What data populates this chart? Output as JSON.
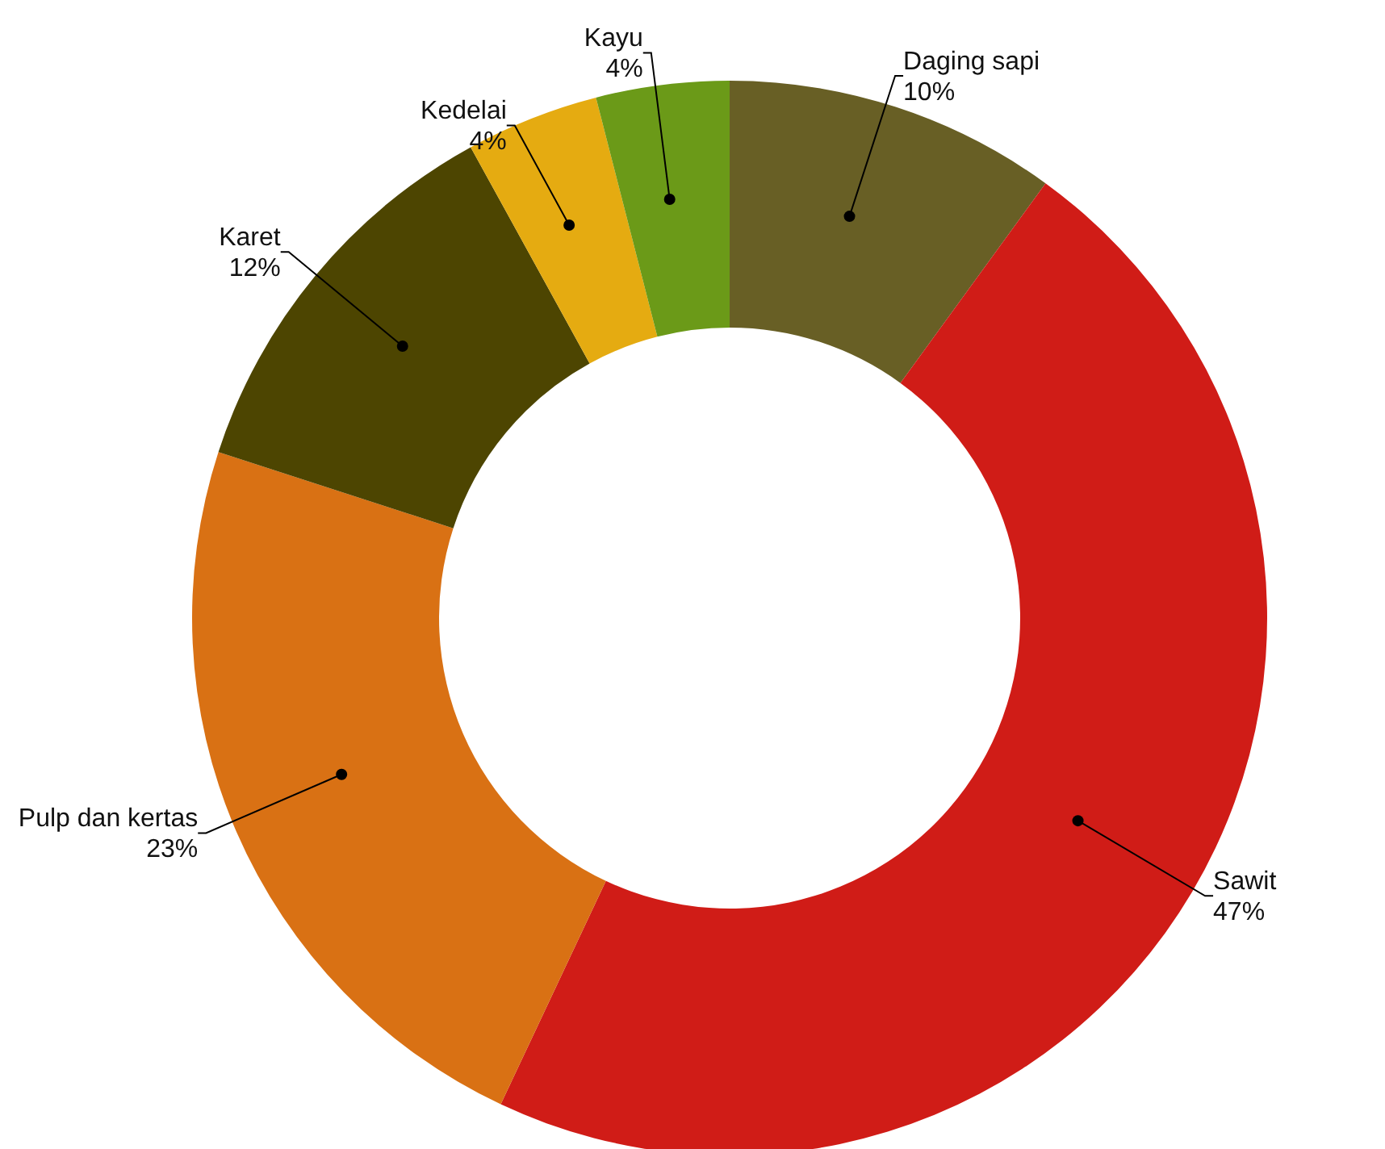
{
  "chart_data": {
    "type": "donut",
    "categories": [
      "Daging sapi",
      "Sawit",
      "Pulp dan kertas",
      "Karet",
      "Kedelai",
      "Kayu"
    ],
    "values": [
      10,
      47,
      23,
      12,
      4,
      4
    ],
    "colors": [
      "#685f25",
      "#d01c17",
      "#d97114",
      "#4d4501",
      "#e5ab11",
      "#6b9a18"
    ],
    "value_labels": [
      "10%",
      "47%",
      "23%",
      "12%",
      "4%",
      "4%"
    ],
    "legend": false
  }
}
